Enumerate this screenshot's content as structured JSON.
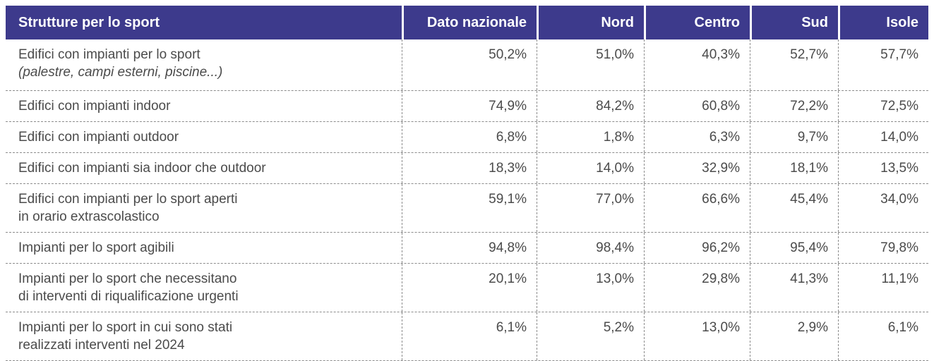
{
  "table": {
    "header": {
      "label": "Strutture per lo sport",
      "columns": [
        "Dato nazionale",
        "Nord",
        "Centro",
        "Sud",
        "Isole"
      ]
    },
    "rows": [
      {
        "label": "Edifici con impianti per lo sport",
        "label2": "(palestre, campi esterni, piscine...)",
        "values": [
          "50,2%",
          "51,0%",
          "40,3%",
          "52,7%",
          "57,7%"
        ]
      },
      {
        "label": "Edifici con impianti indoor",
        "values": [
          "74,9%",
          "84,2%",
          "60,8%",
          "72,2%",
          "72,5%"
        ]
      },
      {
        "label": "Edifici con impianti outdoor",
        "values": [
          "6,8%",
          "1,8%",
          "6,3%",
          "9,7%",
          "14,0%"
        ]
      },
      {
        "label": "Edifici con impianti sia indoor che outdoor",
        "values": [
          "18,3%",
          "14,0%",
          "32,9%",
          "18,1%",
          "13,5%"
        ]
      },
      {
        "label": "Edifici con impianti per lo sport aperti",
        "label2": "in orario extrascolastico",
        "values": [
          "59,1%",
          "77,0%",
          "66,6%",
          "45,4%",
          "34,0%"
        ]
      },
      {
        "label": "Impianti per lo sport agibili",
        "values": [
          "94,8%",
          "98,4%",
          "96,2%",
          "95,4%",
          "79,8%"
        ]
      },
      {
        "label": "Impianti per lo sport che necessitano",
        "label2": "di interventi di riqualificazione urgenti",
        "values": [
          "20,1%",
          "13,0%",
          "29,8%",
          "41,3%",
          "11,1%"
        ]
      },
      {
        "label": "Impianti per lo sport in cui sono stati",
        "label2": "realizzati interventi nel 2024",
        "values": [
          "6,1%",
          "5,2%",
          "13,0%",
          "2,9%",
          "6,1%"
        ]
      }
    ],
    "colors": {
      "header_bg": "#3d3a8c",
      "header_text": "#ffffff",
      "body_text": "#4b4b4b",
      "grid_line": "#8c8c8c"
    }
  },
  "chart_data": {
    "type": "table",
    "title": "Strutture per lo sport",
    "columns": [
      "Dato nazionale",
      "Nord",
      "Centro",
      "Sud",
      "Isole"
    ],
    "unit": "percent",
    "rows": [
      {
        "label": "Edifici con impianti per lo sport (palestre, campi esterni, piscine...)",
        "values": [
          50.2,
          51.0,
          40.3,
          52.7,
          57.7
        ]
      },
      {
        "label": "Edifici con impianti indoor",
        "values": [
          74.9,
          84.2,
          60.8,
          72.2,
          72.5
        ]
      },
      {
        "label": "Edifici con impianti outdoor",
        "values": [
          6.8,
          1.8,
          6.3,
          9.7,
          14.0
        ]
      },
      {
        "label": "Edifici con impianti sia indoor che outdoor",
        "values": [
          18.3,
          14.0,
          32.9,
          18.1,
          13.5
        ]
      },
      {
        "label": "Edifici con impianti per lo sport aperti in orario extrascolastico",
        "values": [
          59.1,
          77.0,
          66.6,
          45.4,
          34.0
        ]
      },
      {
        "label": "Impianti per lo sport agibili",
        "values": [
          94.8,
          98.4,
          96.2,
          95.4,
          79.8
        ]
      },
      {
        "label": "Impianti per lo sport che necessitano di interventi di riqualificazione urgenti",
        "values": [
          20.1,
          13.0,
          29.8,
          41.3,
          11.1
        ]
      },
      {
        "label": "Impianti per lo sport in cui sono stati realizzati interventi nel 2024",
        "values": [
          6.1,
          5.2,
          13.0,
          2.9,
          6.1
        ]
      }
    ]
  }
}
